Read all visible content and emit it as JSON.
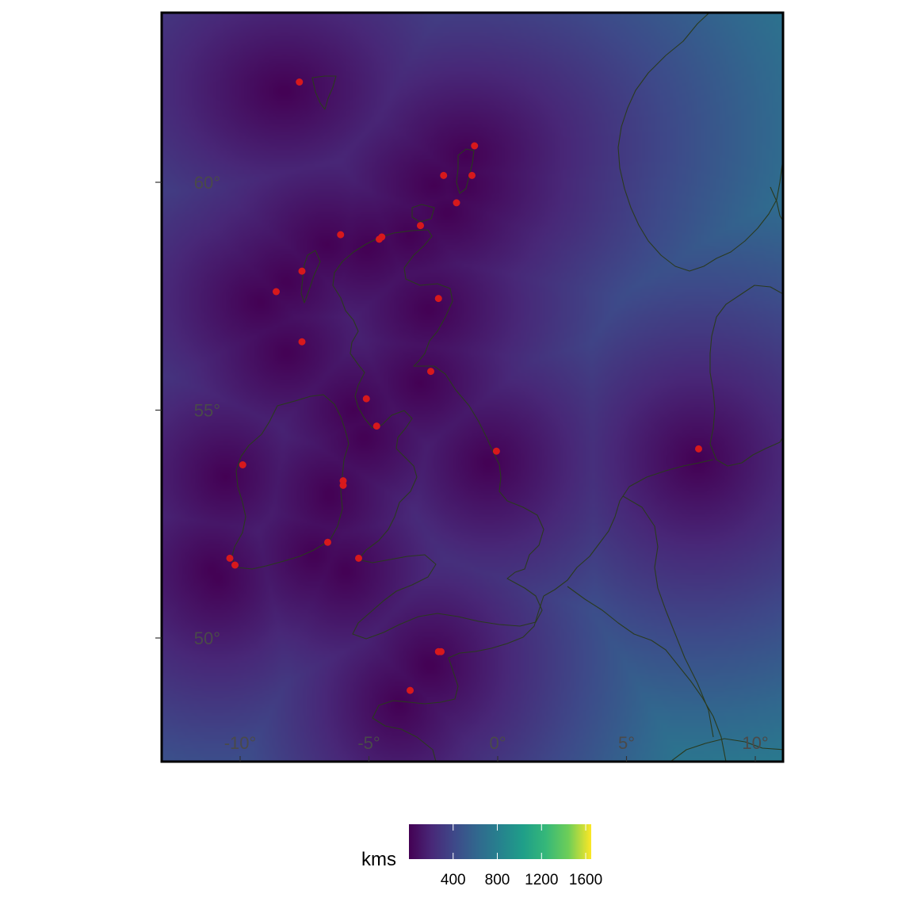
{
  "map": {
    "fill_variable": "distance to nearest station",
    "colormap": "viridis",
    "lon_range": [
      -12.3,
      11.0
    ],
    "lat_range": [
      47.6,
      63.9
    ],
    "lon_ticks": [
      {
        "value": -10,
        "label": "-10°"
      },
      {
        "value": -5,
        "label": "-5°"
      },
      {
        "value": 0,
        "label": "0°"
      },
      {
        "value": 5,
        "label": "5°"
      },
      {
        "value": 10,
        "label": "10°"
      }
    ],
    "lat_ticks": [
      {
        "value": 50,
        "label": "50°"
      },
      {
        "value": 55,
        "label": "55°"
      },
      {
        "value": 60,
        "label": "60°"
      }
    ],
    "station_color": "#d7191c",
    "coastline_color": "#2a3a1e",
    "stations": [
      {
        "lon": -7.7,
        "lat": 62.2
      },
      {
        "lon": -0.9,
        "lat": 60.8
      },
      {
        "lon": -2.1,
        "lat": 60.15
      },
      {
        "lon": -1.0,
        "lat": 60.15
      },
      {
        "lon": -1.6,
        "lat": 59.55
      },
      {
        "lon": -3.0,
        "lat": 59.05
      },
      {
        "lon": -6.1,
        "lat": 58.85
      },
      {
        "lon": -4.5,
        "lat": 58.8
      },
      {
        "lon": -4.6,
        "lat": 58.75
      },
      {
        "lon": -7.6,
        "lat": 58.05
      },
      {
        "lon": -8.6,
        "lat": 57.6
      },
      {
        "lon": -2.3,
        "lat": 57.45
      },
      {
        "lon": -7.6,
        "lat": 56.5
      },
      {
        "lon": -2.6,
        "lat": 55.85
      },
      {
        "lon": -5.1,
        "lat": 55.25
      },
      {
        "lon": -4.7,
        "lat": 54.65
      },
      {
        "lon": -0.05,
        "lat": 54.1
      },
      {
        "lon": 7.8,
        "lat": 54.15
      },
      {
        "lon": -9.9,
        "lat": 53.8
      },
      {
        "lon": -6.0,
        "lat": 53.45
      },
      {
        "lon": -6.0,
        "lat": 53.35
      },
      {
        "lon": -6.6,
        "lat": 52.1
      },
      {
        "lon": -10.4,
        "lat": 51.75
      },
      {
        "lon": -10.2,
        "lat": 51.6
      },
      {
        "lon": -5.4,
        "lat": 51.75
      },
      {
        "lon": -2.2,
        "lat": 49.7
      },
      {
        "lon": -2.3,
        "lat": 49.7
      },
      {
        "lon": -3.4,
        "lat": 48.85
      }
    ]
  },
  "legend": {
    "title": "kms",
    "range": [
      0,
      1650
    ],
    "ticks": [
      {
        "value": 400,
        "label": "400"
      },
      {
        "value": 800,
        "label": "800"
      },
      {
        "value": 1200,
        "label": "1200"
      },
      {
        "value": 1600,
        "label": "1600"
      }
    ]
  }
}
